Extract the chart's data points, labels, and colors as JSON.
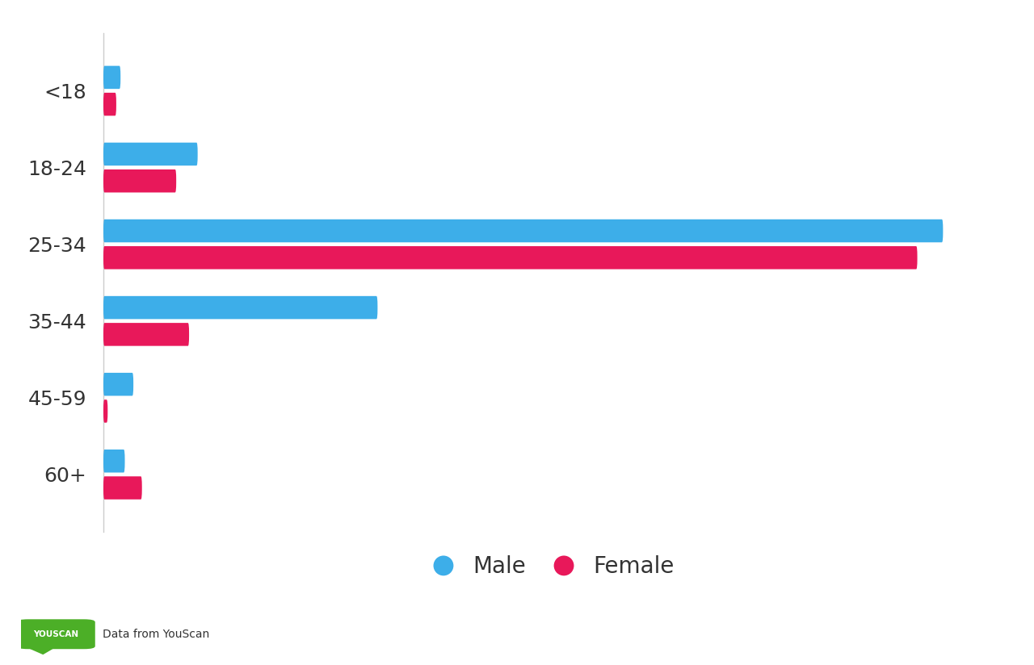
{
  "categories": [
    "60+",
    "45-59",
    "35-44",
    "25-34",
    "18-24",
    "<18"
  ],
  "male_values": [
    2.5,
    3.5,
    32,
    98,
    11,
    2.0
  ],
  "female_values": [
    4.5,
    0.5,
    10,
    95,
    8.5,
    1.5
  ],
  "male_color": "#3DAEE9",
  "female_color": "#E8185A",
  "bar_height": 0.3,
  "bar_gap": 0.05,
  "legend_male": "Male",
  "legend_female": "Female",
  "youscan_color": "#4CAF27",
  "youscan_text": "YOUSCAN",
  "source_text": "Data from YouScan",
  "tick_label_fontsize": 18,
  "legend_fontsize": 20
}
